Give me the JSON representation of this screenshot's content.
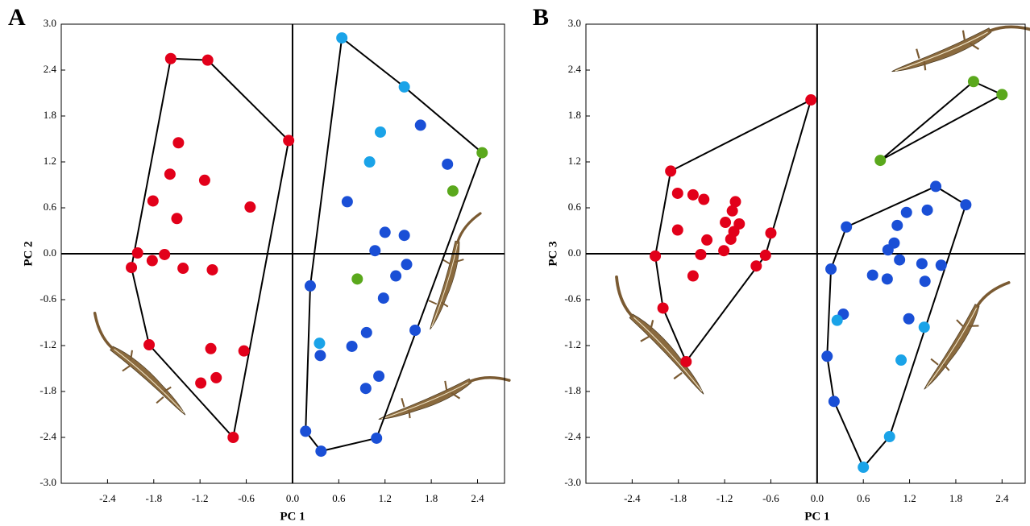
{
  "chart_data": [
    {
      "type": "scatter",
      "panel_label": "A",
      "xlabel": "PC 1",
      "ylabel": "PC 2",
      "xlim": [
        -3.0,
        2.75
      ],
      "ylim": [
        -3.0,
        3.0
      ],
      "xticks": [
        -2.4,
        -1.8,
        -1.2,
        -0.6,
        {
          "value": 0,
          "label": "0.0"
        },
        0.6,
        1.2,
        1.8,
        2.4
      ],
      "yticks": [
        {
          "value": -3,
          "label": "-3.0"
        },
        -2.4,
        -1.8,
        -1.2,
        -0.6,
        {
          "value": 0,
          "label": "0.0"
        },
        0.6,
        1.2,
        1.8,
        2.4,
        {
          "value": 3,
          "label": "3.0"
        }
      ],
      "series": [
        {
          "color": "#e2001a",
          "x": [
            -1.58,
            -1.1,
            -0.05,
            -1.48,
            -1.59,
            -1.14,
            -1.81,
            -0.55,
            -1.5,
            -2.01,
            -1.66,
            -2.09,
            -1.82,
            -1.42,
            -1.04,
            -1.86,
            -1.06,
            -0.63,
            -0.99,
            -1.19,
            -0.77
          ],
          "values": [
            2.55,
            2.53,
            1.48,
            1.45,
            1.04,
            0.96,
            0.69,
            0.61,
            0.46,
            0.01,
            -0.01,
            -0.18,
            -0.09,
            -0.19,
            -0.21,
            -1.19,
            -1.24,
            -1.27,
            -1.62,
            -1.69,
            -2.4
          ]
        },
        {
          "color": "#1a4fd6",
          "x": [
            0.23,
            0.36,
            0.77,
            0.71,
            1.07,
            1.2,
            1.45,
            1.48,
            1.34,
            1.18,
            0.96,
            1.12,
            0.95,
            1.09,
            0.17,
            0.37,
            1.66,
            2.01,
            1.59
          ],
          "values": [
            -0.42,
            -1.33,
            -1.21,
            0.68,
            0.04,
            0.28,
            0.24,
            -0.14,
            -0.29,
            -0.58,
            -1.03,
            -1.6,
            -1.76,
            -2.41,
            -2.32,
            -2.58,
            1.68,
            1.17,
            -1.0
          ]
        },
        {
          "color": "#1aa3e8",
          "x": [
            0.64,
            1.45,
            1.14,
            1.0,
            0.35
          ],
          "values": [
            2.82,
            2.18,
            1.59,
            1.2,
            -1.17
          ]
        },
        {
          "color": "#5aa81c",
          "x": [
            2.46,
            2.08,
            0.84
          ],
          "values": [
            1.32,
            0.82,
            -0.33
          ]
        }
      ]
    },
    {
      "type": "scatter",
      "panel_label": "B",
      "xlabel": "PC 1",
      "ylabel": "PC 3",
      "xlim": [
        -3.0,
        2.7
      ],
      "ylim": [
        -3.0,
        3.0
      ],
      "xticks": [
        -2.4,
        -1.8,
        -1.2,
        -0.6,
        {
          "value": 0,
          "label": "0.0"
        },
        0.6,
        1.2,
        1.8,
        2.4
      ],
      "yticks": [
        {
          "value": -3,
          "label": "-3.0"
        },
        -2.4,
        -1.8,
        -1.2,
        -0.6,
        {
          "value": 0,
          "label": "0.0"
        },
        0.6,
        1.2,
        1.8,
        2.4,
        {
          "value": 3,
          "label": "3.0"
        }
      ],
      "series": [
        {
          "color": "#e2001a",
          "x": [
            -0.08,
            -1.9,
            -1.81,
            -1.61,
            -1.47,
            -1.06,
            -1.1,
            -1.81,
            -1.19,
            -1.01,
            -1.08,
            -1.43,
            -1.12,
            -0.6,
            -1.21,
            -1.51,
            -2.1,
            -0.67,
            -0.79,
            -1.61,
            -2.0,
            -1.7
          ],
          "values": [
            2.01,
            1.08,
            0.79,
            0.77,
            0.71,
            0.68,
            0.56,
            0.31,
            0.41,
            0.39,
            0.29,
            0.18,
            0.19,
            0.27,
            0.04,
            -0.01,
            -0.03,
            -0.02,
            -0.16,
            -0.29,
            -0.71,
            -1.41
          ]
        },
        {
          "color": "#1a4fd6",
          "x": [
            1.54,
            1.93,
            0.38,
            1.04,
            1.16,
            1.43,
            1.0,
            0.92,
            1.07,
            1.36,
            1.61,
            0.18,
            0.72,
            0.91,
            1.4,
            0.34,
            1.19,
            0.13,
            0.22
          ],
          "values": [
            0.88,
            0.64,
            0.35,
            0.37,
            0.54,
            0.57,
            0.14,
            0.05,
            -0.08,
            -0.13,
            -0.15,
            -0.2,
            -0.28,
            -0.33,
            -0.36,
            -0.79,
            -0.85,
            -1.34,
            -1.93
          ]
        },
        {
          "color": "#1aa3e8",
          "x": [
            0.26,
            1.39,
            1.09,
            0.94,
            0.6
          ],
          "values": [
            -0.87,
            -0.96,
            -1.39,
            -2.39,
            -2.79
          ]
        },
        {
          "color": "#5aa81c",
          "x": [
            2.03,
            2.4,
            0.82
          ],
          "values": [
            2.25,
            2.08,
            1.22
          ]
        }
      ]
    }
  ]
}
